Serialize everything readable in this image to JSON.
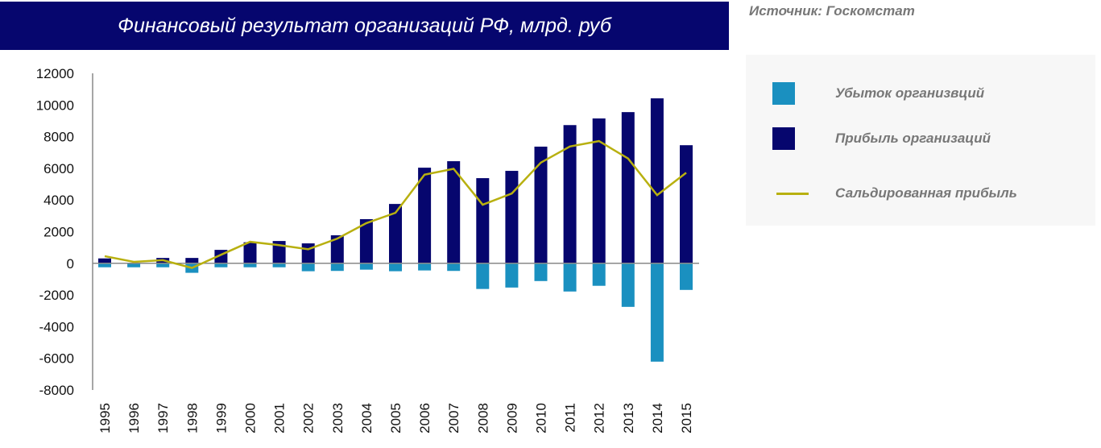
{
  "source": "Источник: Госкомстат",
  "chart_data": {
    "type": "bar",
    "title": "Финансовый результат организаций РФ, млрд. руб",
    "xlabel": "",
    "ylabel": "",
    "ylim": [
      -8000,
      12000
    ],
    "yticks": [
      "12000",
      "10000",
      "8000",
      "6000",
      "4000",
      "2000",
      "0",
      "-2000",
      "-4000",
      "-6000",
      "-8000"
    ],
    "grid": false,
    "legend_position": "right",
    "categories": [
      "1995",
      "1996",
      "1997",
      "1998",
      "1999",
      "2000",
      "2001",
      "2002",
      "2003",
      "2004",
      "2005",
      "2006",
      "2007",
      "2008",
      "2009",
      "2010",
      "2011",
      "2012",
      "2013",
      "2014",
      "2015"
    ],
    "series": [
      {
        "name": "Убыток организвций",
        "kind": "bar",
        "color": "#1a90c0",
        "values": [
          -250,
          -250,
          -250,
          -600,
          -250,
          -250,
          -250,
          -500,
          -480,
          -400,
          -500,
          -450,
          -480,
          -1620,
          -1530,
          -1120,
          -1780,
          -1420,
          -2750,
          -6210,
          -1680
        ]
      },
      {
        "name": "Прибыль организаций",
        "kind": "bar",
        "color": "#06066e",
        "values": [
          310,
          0,
          340,
          340,
          850,
          1330,
          1410,
          1260,
          1770,
          2790,
          3750,
          6040,
          6450,
          5380,
          5840,
          7370,
          8730,
          9150,
          9550,
          10420,
          7460
        ]
      },
      {
        "name": "Сальдированная прибыль",
        "kind": "line",
        "color": "#b8b010",
        "values": [
          450,
          90,
          200,
          -290,
          540,
          1360,
          1150,
          890,
          1560,
          2540,
          3190,
          5600,
          5970,
          3700,
          4410,
          6360,
          7380,
          7720,
          6620,
          4310,
          5720
        ]
      }
    ]
  }
}
